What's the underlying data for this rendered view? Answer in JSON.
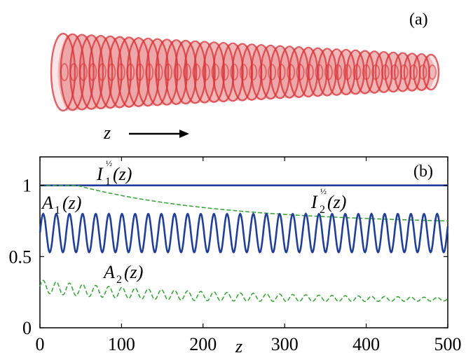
{
  "panel_a": {
    "label": "(a)",
    "arrow_label": "z",
    "tube_color": "#d93035",
    "description_rings": 40
  },
  "chart_data": {
    "type": "line",
    "panel_label": "(b)",
    "xlabel": "z",
    "ylabel": "",
    "xlim": [
      0,
      500
    ],
    "ylim": [
      0,
      1.2
    ],
    "x_ticks": [
      "0",
      "100",
      "200",
      "300",
      "400",
      "500"
    ],
    "y_ticks": [
      "0",
      "0.5",
      "1"
    ],
    "grid": false,
    "series": [
      {
        "name": "I1^1/2(z)",
        "style": "solid",
        "color": "#1f3f99",
        "kind": "flat",
        "value": 1.0
      },
      {
        "name": "I2^1/2(z)",
        "style": "dashed",
        "color": "#3aa83a",
        "kind": "decay",
        "start": 1.0,
        "plateau_until": 45,
        "end": 0.75
      },
      {
        "name": "A1(z)",
        "style": "solid",
        "color": "#1f3f99",
        "kind": "oscillation",
        "center": 0.665,
        "amplitude": 0.135,
        "period": 16.1,
        "min": 0.53,
        "max": 0.8
      },
      {
        "name": "A2(z)",
        "style": "dashed",
        "color": "#3aa83a",
        "kind": "damped-oscillation",
        "center_start": 0.29,
        "center_end": 0.2,
        "amplitude_start": 0.045,
        "amplitude_end": 0.012,
        "period": 16.1
      }
    ],
    "annotations": [
      {
        "text": "I",
        "sub": "1",
        "sup": "½",
        "arg": "(z)",
        "series": "I1^1/2(z)"
      },
      {
        "text": "I",
        "sub": "2",
        "sup": "½",
        "arg": "(z)",
        "series": "I2^1/2(z)"
      },
      {
        "text": "A",
        "sub": "1",
        "sup": "",
        "arg": "(z)",
        "series": "A1(z)"
      },
      {
        "text": "A",
        "sub": "2",
        "sup": "",
        "arg": "(z)",
        "series": "A2(z)"
      }
    ]
  }
}
